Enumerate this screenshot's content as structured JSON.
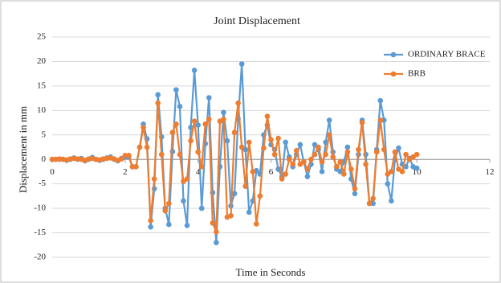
{
  "chart_data": {
    "type": "line",
    "title": "Joint Displacement",
    "x_label": "Time in Seconds",
    "y_label": "Displacement in mm",
    "x": [
      0,
      0.1,
      0.2,
      0.3,
      0.4,
      0.5,
      0.6,
      0.7,
      0.8,
      0.9,
      1,
      1.1,
      1.2,
      1.3,
      1.4,
      1.5,
      1.6,
      1.7,
      1.8,
      1.9,
      2,
      2.1,
      2.2,
      2.3,
      2.4,
      2.5,
      2.6,
      2.7,
      2.8,
      2.9,
      3,
      3.1,
      3.2,
      3.3,
      3.4,
      3.5,
      3.6,
      3.7,
      3.8,
      3.9,
      4,
      4.1,
      4.2,
      4.3,
      4.4,
      4.5,
      4.6,
      4.7,
      4.8,
      4.9,
      5,
      5.1,
      5.2,
      5.3,
      5.4,
      5.5,
      5.6,
      5.7,
      5.8,
      5.9,
      6,
      6.1,
      6.2,
      6.3,
      6.4,
      6.5,
      6.6,
      6.7,
      6.8,
      6.9,
      7,
      7.1,
      7.2,
      7.3,
      7.4,
      7.5,
      7.6,
      7.7,
      7.8,
      7.9,
      8,
      8.1,
      8.2,
      8.3,
      8.4,
      8.5,
      8.6,
      8.7,
      8.8,
      8.9,
      9,
      9.1,
      9.2,
      9.3,
      9.4,
      9.5,
      9.6,
      9.7,
      9.8,
      9.9,
      10
    ],
    "series": [
      {
        "name": "ORDINARY BRACE",
        "color": "#5b9bd5",
        "values": [
          0,
          0,
          0,
          0,
          -0.2,
          0,
          0.3,
          0,
          0.2,
          -0.3,
          0,
          0.4,
          0,
          -0.2,
          0,
          0.3,
          0.5,
          0,
          -0.3,
          0.2,
          0.5,
          0.5,
          -1.5,
          -1.5,
          2.5,
          7.2,
          4.2,
          -13.8,
          -6,
          13.2,
          4.6,
          -10,
          -13.3,
          1.6,
          14.2,
          10.8,
          -8.5,
          -13.5,
          6.5,
          18.2,
          7,
          -10,
          3.2,
          12.6,
          -6.8,
          -17,
          -1.5,
          9.6,
          3.8,
          -9.5,
          -7,
          8.3,
          19.5,
          2,
          -10.8,
          -8.5,
          -2.3,
          -3,
          5,
          7,
          3,
          2,
          -2,
          -3.5,
          3.5,
          0.5,
          -1.5,
          1,
          3,
          -0.5,
          -3.5,
          -1,
          3,
          2,
          -2.5,
          3.5,
          8,
          1.5,
          -2,
          -2.5,
          -0.5,
          2.5,
          -4,
          -7,
          1,
          8,
          1,
          -9,
          -9,
          2,
          12,
          8,
          -5,
          -8.5,
          0,
          2.3,
          -1,
          -1.5,
          0.2,
          -1.5,
          -1.8
        ]
      },
      {
        "name": "BRB",
        "color": "#ed7d31",
        "values": [
          0,
          0,
          0.1,
          0,
          -0.1,
          0.1,
          0.2,
          0.1,
          0,
          -0.2,
          0.1,
          0.2,
          0,
          -0.1,
          0.1,
          0.2,
          0.3,
          0.1,
          -0.2,
          0.1,
          0.8,
          0.8,
          -1.5,
          -1.5,
          2.5,
          6.5,
          2.5,
          -12.5,
          -4,
          11.5,
          1,
          -10.5,
          -9,
          5.5,
          7.2,
          1,
          -4.5,
          -4,
          3.8,
          7.8,
          1.5,
          -1.5,
          7.2,
          8.2,
          -13,
          -14.8,
          7.8,
          8.2,
          -11.8,
          -11.5,
          5.5,
          11.5,
          2.5,
          -5.5,
          3.5,
          -2.5,
          -13.2,
          -7.5,
          2.3,
          8.8,
          4,
          1,
          4.3,
          -4,
          -3,
          0,
          -1,
          1.8,
          -1,
          -0.5,
          -2,
          0,
          1,
          2.5,
          -0.5,
          1,
          5,
          0.5,
          -1.5,
          -0.5,
          -3,
          1.5,
          -2,
          -6,
          2,
          7.5,
          -1,
          -9,
          -8,
          1.5,
          8,
          2,
          -3,
          -2.5,
          1.5,
          -2,
          -2.5,
          1,
          0,
          0.5,
          1
        ]
      }
    ],
    "xlim": [
      0,
      12
    ],
    "xticks": [
      0,
      2,
      4,
      6,
      8,
      10,
      12
    ],
    "ylim": [
      -20,
      25
    ],
    "yticks": [
      -20,
      -15,
      -10,
      -5,
      0,
      5,
      10,
      15,
      20,
      25
    ],
    "grid": true,
    "legend": "top-right"
  }
}
